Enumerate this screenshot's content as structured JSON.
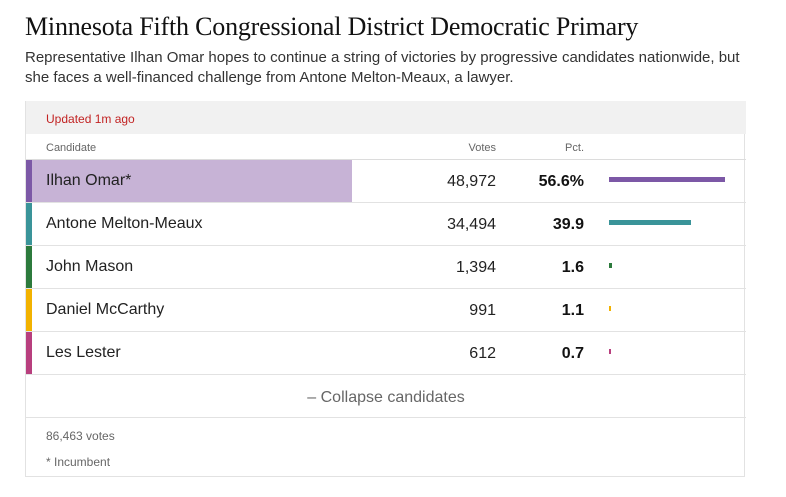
{
  "header": {
    "title": "Minnesota Fifth Congressional District Democratic Primary",
    "subtitle": "Representative Ilhan Omar hopes to continue a string of victories by progressive candidates nationwide, but she faces a well-financed challenge from Antone Melton-Meaux, a lawyer."
  },
  "results": {
    "updated": "Updated 1m ago",
    "columns": {
      "candidate": "Candidate",
      "votes": "Votes",
      "pct": "Pct."
    },
    "candidates": [
      {
        "name": "Ilhan Omar*",
        "votes": "48,972",
        "pct": "56.6%",
        "share": 0.566,
        "color": "#7c58a6",
        "leader": true
      },
      {
        "name": "Antone Melton-Meaux",
        "votes": "34,494",
        "pct": "39.9",
        "share": 0.399,
        "color": "#3a9499",
        "leader": false
      },
      {
        "name": "John Mason",
        "votes": "1,394",
        "pct": "1.6",
        "share": 0.016,
        "color": "#2c7a3c",
        "leader": false
      },
      {
        "name": "Daniel McCarthy",
        "votes": "991",
        "pct": "1.1",
        "share": 0.011,
        "color": "#f2b200",
        "leader": false
      },
      {
        "name": "Les Lester",
        "votes": "612",
        "pct": "0.7",
        "share": 0.007,
        "color": "#b83f7e",
        "leader": false
      }
    ],
    "collapse_label": "– Collapse candidates",
    "total_votes": "86,463 votes",
    "footnote": "* Incumbent"
  }
}
